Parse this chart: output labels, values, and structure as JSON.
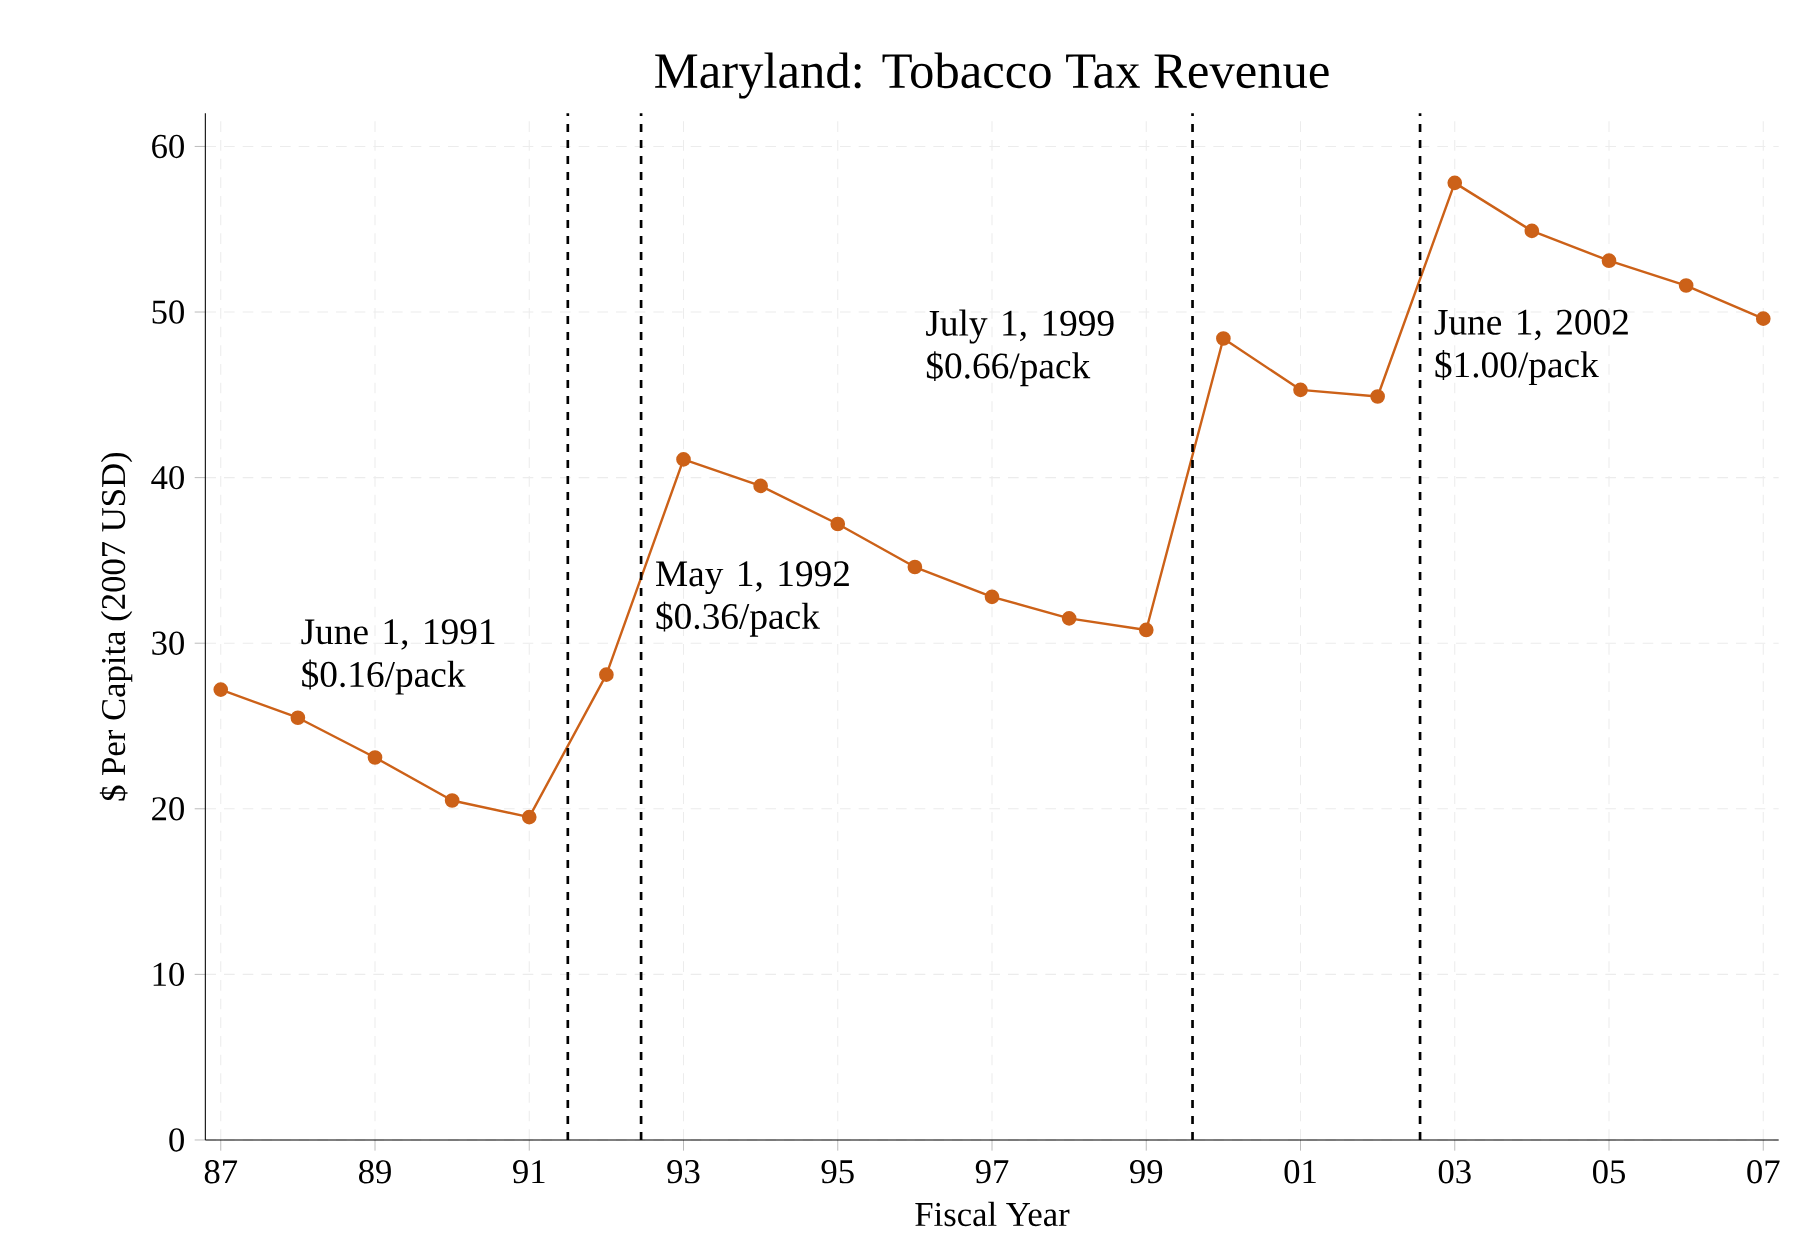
{
  "chart_data": {
    "type": "line",
    "title": "Maryland: Tobacco Tax Revenue",
    "xlabel": "Fiscal Year",
    "ylabel": "$ Per Capita (2007 USD)",
    "x": [
      1987,
      1988,
      1989,
      1990,
      1991,
      1992,
      1993,
      1994,
      1995,
      1996,
      1997,
      1998,
      1999,
      2000,
      2001,
      2002,
      2003,
      2004,
      2005,
      2006,
      2007
    ],
    "series": [
      {
        "color": "#cc6118",
        "values": [
          27.2,
          25.5,
          23.1,
          20.5,
          19.5,
          28.1,
          41.1,
          39.5,
          37.2,
          34.6,
          32.8,
          31.5,
          30.8,
          48.4,
          45.3,
          44.9,
          57.8,
          54.9,
          53.1,
          51.6,
          49.6
        ]
      }
    ],
    "xlim": [
      1987,
      2007
    ],
    "ylim": [
      0,
      62
    ],
    "xticks": [
      {
        "value": 1987,
        "label": "87"
      },
      {
        "value": 1989,
        "label": "89"
      },
      {
        "value": 1991,
        "label": "91"
      },
      {
        "value": 1993,
        "label": "93"
      },
      {
        "value": 1995,
        "label": "95"
      },
      {
        "value": 1997,
        "label": "97"
      },
      {
        "value": 1999,
        "label": "99"
      },
      {
        "value": 2001,
        "label": "01"
      },
      {
        "value": 2003,
        "label": "03"
      },
      {
        "value": 2005,
        "label": "05"
      },
      {
        "value": 2007,
        "label": "07"
      }
    ],
    "yticks": [
      0,
      10,
      20,
      30,
      40,
      50,
      60
    ],
    "ref_lines": [
      {
        "axis": "x",
        "value": 1991.5,
        "label": "June 1, 1991 $0.16/pack",
        "color": "#000000",
        "line_style": "dashed"
      },
      {
        "axis": "x",
        "value": 1992.45,
        "label": "May 1, 1992 $0.36/pack",
        "color": "#000000",
        "line_style": "dashed"
      },
      {
        "axis": "x",
        "value": 1999.6,
        "label": "July 1, 1999 $0.66/pack",
        "color": "#000000",
        "line_style": "dashed"
      },
      {
        "axis": "x",
        "value": 2002.55,
        "label": "June 1, 2002 $1.00/pack",
        "color": "#000000",
        "line_style": "dashed"
      }
    ],
    "grid": true,
    "marker": "circle",
    "line_style": "solid"
  }
}
